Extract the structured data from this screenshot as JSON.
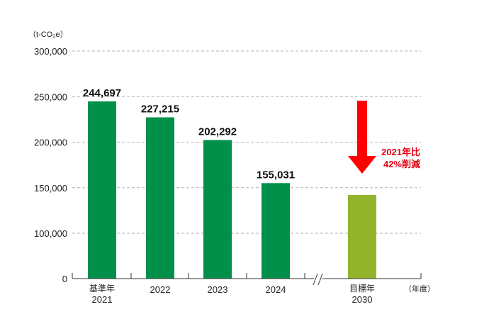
{
  "chart_data": {
    "type": "bar",
    "y_unit": "（t-CO₂e）",
    "x_unit": "（年度）",
    "ylim": [
      0,
      300000
    ],
    "y_ticks": [
      "0",
      "100,000",
      "150,000",
      "200,000",
      "250,000",
      "300,000"
    ],
    "grid": true,
    "categories": [
      {
        "sub": "基準年",
        "label": "2021"
      },
      {
        "sub": "",
        "label": "2022"
      },
      {
        "sub": "",
        "label": "2023"
      },
      {
        "sub": "",
        "label": "2024"
      },
      {
        "sub": "目標年",
        "label": "2030"
      }
    ],
    "values": [
      244697,
      227215,
      202292,
      155031,
      142000
    ],
    "value_labels": [
      "244,697",
      "227,215",
      "202,292",
      "155,031",
      ""
    ],
    "colors": [
      "#00904a",
      "#00904a",
      "#00904a",
      "#00904a",
      "#93b42a"
    ],
    "axis_break": true,
    "annotation": {
      "lines": [
        "2021年比",
        "42%削減"
      ],
      "arrow_color": "#ff0000",
      "text_color": "#e60012"
    }
  }
}
